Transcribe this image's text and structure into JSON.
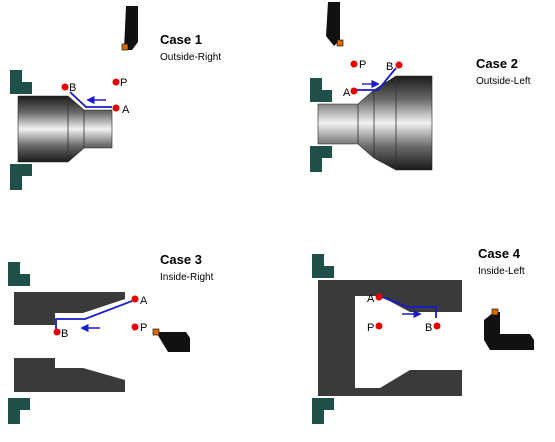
{
  "colors": {
    "chuck": "#1f4f49",
    "workpiece_dark": "#3a3a3a",
    "toolpath": "#1a1acc",
    "point": "#e60000",
    "tool_tip": "#d86a00"
  },
  "cases": [
    {
      "title": "Case 1",
      "subtitle": "Outside-Right",
      "points": {
        "A": "A",
        "B": "B",
        "P": "P"
      }
    },
    {
      "title": "Case 2",
      "subtitle": "Outside-Left",
      "points": {
        "A": "A",
        "B": "B",
        "P": "P"
      }
    },
    {
      "title": "Case 3",
      "subtitle": "Inside-Right",
      "points": {
        "A": "A",
        "B": "B",
        "P": "P"
      }
    },
    {
      "title": "Case 4",
      "subtitle": "Inside-Left",
      "points": {
        "A": "A",
        "B": "B",
        "P": "P"
      }
    }
  ]
}
